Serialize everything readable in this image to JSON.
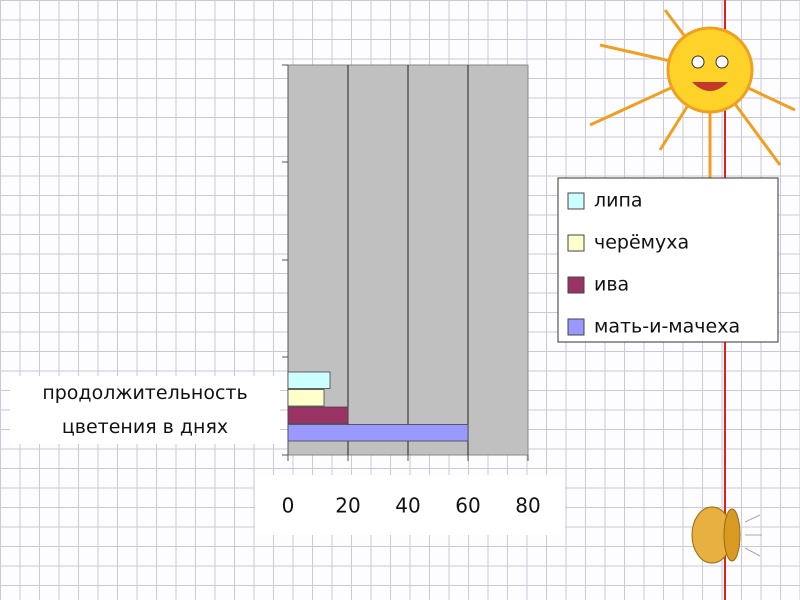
{
  "chart_data": {
    "type": "bar",
    "orientation": "horizontal",
    "categories": [
      "продолжительность цветения в днях"
    ],
    "series": [
      {
        "name": "липа",
        "color": "#ccffff",
        "values": [
          14
        ]
      },
      {
        "name": "черёмуха",
        "color": "#ffffcc",
        "values": [
          12
        ]
      },
      {
        "name": "ива",
        "color": "#993366",
        "values": [
          20
        ]
      },
      {
        "name": "мать-и-мачеха",
        "color": "#9999ff",
        "values": [
          60
        ]
      }
    ],
    "xlim": [
      0,
      80
    ],
    "xticks": [
      0,
      20,
      40,
      60,
      80
    ],
    "grid": true,
    "legend": "right"
  }
}
